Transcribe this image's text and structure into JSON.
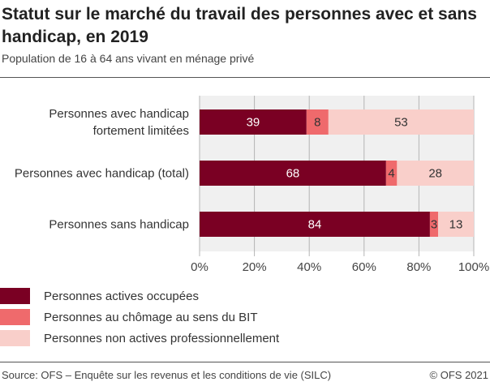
{
  "header": {
    "title": "Statut sur le marché du travail des personnes avec et sans handicap, en 2019",
    "subtitle": "Population de 16 à 64 ans vivant en ménage privé"
  },
  "footer": {
    "source": "Source: OFS – Enquête sur les revenus et les conditions de vie (SILC)",
    "copyright": "© OFS 2021"
  },
  "chart_data": {
    "type": "bar",
    "orientation": "horizontal",
    "stacked": "percent",
    "categories": [
      [
        "Personnes avec handicap",
        "fortement limitées"
      ],
      [
        "Personnes avec handicap (total)"
      ],
      [
        "Personnes sans handicap"
      ]
    ],
    "series": [
      {
        "name": "Personnes actives occupées",
        "color": "#7a0023",
        "label_color": "#ffffff",
        "values": [
          39,
          68,
          84
        ]
      },
      {
        "name": "Personnes au chômage au sens du BIT",
        "color": "#ef6a6c",
        "label_color": "#333333",
        "values": [
          8,
          4,
          3
        ]
      },
      {
        "name": "Personnes non actives professionnellement",
        "color": "#f9cfca",
        "label_color": "#333333",
        "values": [
          53,
          28,
          13
        ]
      }
    ],
    "xlim": [
      0,
      100
    ],
    "xticks": [
      "0%",
      "20%",
      "40%",
      "60%",
      "80%",
      "100%"
    ],
    "xtick_values": [
      0,
      20,
      40,
      60,
      80,
      100
    ],
    "grid": true,
    "plot_background": "#f0f0f0",
    "legend_position": "bottom-left"
  }
}
